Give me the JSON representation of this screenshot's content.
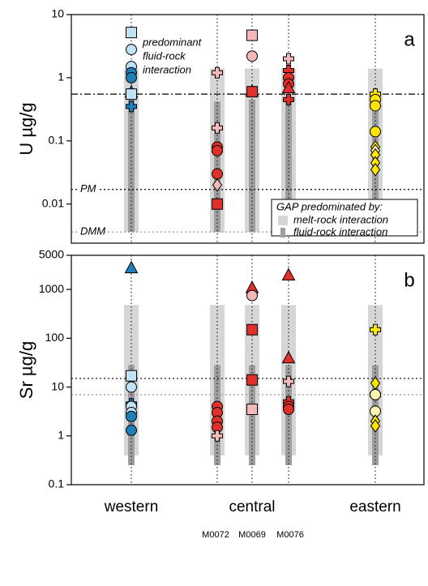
{
  "chart_data": [
    {
      "type": "scatter",
      "panel_label": "a",
      "y_label": "U µg/g",
      "log_y": true,
      "ylim": [
        0.0024,
        10
      ],
      "yticks": [
        0.01,
        0.1,
        1,
        10
      ],
      "melt_color": "#d6d6d6",
      "fluid_color": "#9e9e9e",
      "annotation": [
        "predominant",
        "fluid-rock",
        "interaction"
      ],
      "reference_lines": [
        {
          "value": 0.55,
          "style": "dashdot",
          "color": "#000000"
        },
        {
          "value": 0.017,
          "style": "dotted",
          "color": "#000000",
          "label": "PM"
        },
        {
          "value": 0.0036,
          "style": "dotted",
          "color": "#999999",
          "label": "DMM"
        }
      ],
      "legend": {
        "title": "GAP predominated by:",
        "entries": [
          "melt-rock interaction",
          "fluid-rock interaction"
        ]
      },
      "series": [
        {
          "melt_range": [
            0.0036,
            1.4
          ],
          "fluid_range": [
            0.0036,
            0.45
          ],
          "values": [
            5.2,
            2.8,
            1.5,
            1.2,
            1.0,
            0.6,
            0.55,
            0.35
          ],
          "markers": [
            "square",
            "circle",
            "circle",
            "circle",
            "circle",
            "triangle",
            "square",
            "cross"
          ],
          "colors": [
            "#bfe3f5",
            "#bfe3f5",
            "#bfe3f5",
            "#1f7fb8",
            "#1f7fb8",
            "#1f7fb8",
            "#bfe3f5",
            "#1f7fb8"
          ]
        },
        {
          "melt_range": [
            0.0036,
            1.4
          ],
          "fluid_range": [
            0.0036,
            0.42
          ],
          "values": [
            1.2,
            0.16,
            0.08,
            0.07,
            0.03,
            0.02,
            0.01
          ],
          "markers": [
            "cross",
            "cross",
            "circle",
            "circle",
            "circle",
            "diamond",
            "square"
          ],
          "colors": [
            "#f4b8b8",
            "#f4b8b8",
            "#e0302a",
            "#e0302a",
            "#e0302a",
            "#f4b8b8",
            "#e0302a"
          ]
        },
        {
          "melt_range": [
            0.0036,
            1.4
          ],
          "fluid_range": [
            0.0036,
            0.45
          ],
          "values": [
            4.7,
            2.2,
            0.62,
            0.6
          ],
          "markers": [
            "square",
            "circle",
            "triangle",
            "square"
          ],
          "colors": [
            "#f4b8b8",
            "#f4b8b8",
            "#e0302a",
            "#e0302a"
          ]
        },
        {
          "melt_range": [
            0.0036,
            1.4
          ],
          "fluid_range": [
            0.0036,
            0.45
          ],
          "values": [
            2.0,
            1.3,
            1.0,
            0.8,
            0.7,
            0.45
          ],
          "markers": [
            "cross",
            "cross",
            "circle",
            "circle",
            "triangle",
            "cross"
          ],
          "colors": [
            "#f4b8b8",
            "#e0302a",
            "#e0302a",
            "#e0302a",
            "#e0302a",
            "#e0302a"
          ]
        },
        {
          "melt_range": [
            0.0036,
            1.4
          ],
          "fluid_range": [
            0.0036,
            0.45
          ],
          "values": [
            0.55,
            0.45,
            0.36,
            0.14,
            0.08,
            0.07,
            0.06,
            0.045,
            0.035
          ],
          "markers": [
            "cross",
            "circle",
            "circle",
            "circle",
            "diamond",
            "diamond",
            "diamond",
            "diamond",
            "diamond"
          ],
          "colors": [
            "#ffe600",
            "#ffe600",
            "#ffe600",
            "#ffe600",
            "#ffe600",
            "#fff5b0",
            "#ffe600",
            "#ffe600",
            "#ffe600"
          ]
        }
      ]
    },
    {
      "type": "scatter",
      "panel_label": "b",
      "y_label": "Sr µg/g",
      "log_y": true,
      "ylim": [
        0.1,
        5000
      ],
      "yticks": [
        0.1,
        1,
        10,
        100,
        1000,
        5000
      ],
      "melt_color": "#d6d6d6",
      "fluid_color": "#9e9e9e",
      "reference_lines": [
        {
          "value": 15,
          "style": "dotted",
          "color": "#000000"
        },
        {
          "value": 7,
          "style": "dotted",
          "color": "#999999"
        }
      ],
      "series": [
        {
          "melt_range": [
            0.4,
            480
          ],
          "fluid_range": [
            0.25,
            28
          ],
          "values": [
            2800,
            17,
            10,
            4.5,
            4,
            3,
            2.5,
            1.3
          ],
          "markers": [
            "triangle",
            "square",
            "circle",
            "cross",
            "circle",
            "circle",
            "circle",
            "circle"
          ],
          "colors": [
            "#1f7fb8",
            "#bfe3f5",
            "#bfe3f5",
            "#1f7fb8",
            "#bfe3f5",
            "#bfe3f5",
            "#1f7fb8",
            "#1f7fb8"
          ]
        },
        {
          "melt_range": [
            0.4,
            480
          ],
          "fluid_range": [
            0.25,
            28
          ],
          "values": [
            4,
            3,
            2,
            1.5,
            1
          ],
          "markers": [
            "circle",
            "circle",
            "circle",
            "circle",
            "cross"
          ],
          "colors": [
            "#e0302a",
            "#e0302a",
            "#e0302a",
            "#e0302a",
            "#f4b8b8"
          ]
        },
        {
          "melt_range": [
            0.4,
            480
          ],
          "fluid_range": [
            0.25,
            28
          ],
          "values": [
            1100,
            750,
            150,
            14,
            3.5
          ],
          "markers": [
            "triangle",
            "circle",
            "square",
            "square",
            "square"
          ],
          "colors": [
            "#e0302a",
            "#f4b8b8",
            "#e0302a",
            "#e0302a",
            "#f4b8b8"
          ]
        },
        {
          "melt_range": [
            0.4,
            480
          ],
          "fluid_range": [
            0.25,
            28
          ],
          "values": [
            2000,
            40,
            13,
            5,
            4,
            3.5
          ],
          "markers": [
            "triangle",
            "triangle",
            "cross",
            "cross",
            "circle",
            "circle"
          ],
          "colors": [
            "#e0302a",
            "#e0302a",
            "#f4b8b8",
            "#e0302a",
            "#e0302a",
            "#e0302a"
          ]
        },
        {
          "melt_range": [
            0.4,
            480
          ],
          "fluid_range": [
            0.25,
            28
          ],
          "values": [
            150,
            12,
            7,
            7,
            3.2,
            2,
            1.6
          ],
          "markers": [
            "cross",
            "diamond",
            "cross",
            "circle",
            "circle",
            "diamond",
            "diamond"
          ],
          "colors": [
            "#ffe600",
            "#ffe600",
            "#ffe600",
            "#fff5b0",
            "#fff5b0",
            "#ffe600",
            "#ffe600"
          ]
        }
      ]
    }
  ],
  "x_axis": {
    "groups": [
      "western",
      "central",
      "eastern"
    ],
    "samples": [
      "M0072",
      "M0069",
      "M0076"
    ]
  }
}
